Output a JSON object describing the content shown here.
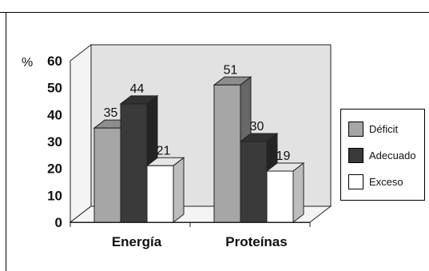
{
  "chart_data": {
    "type": "bar",
    "ylabel": "%",
    "ylim": [
      0,
      60
    ],
    "yticks": [
      0,
      10,
      20,
      30,
      40,
      50,
      60
    ],
    "categories": [
      "Energía",
      "Proteínas"
    ],
    "series": [
      {
        "name": "Déficit",
        "values": [
          35,
          51
        ],
        "color": "#a6a6a6"
      },
      {
        "name": "Adecuado",
        "values": [
          44,
          30
        ],
        "color": "#3a3a3a"
      },
      {
        "name": "Exceso",
        "values": [
          21,
          19
        ],
        "color": "#ffffff"
      }
    ],
    "legend_position": "right",
    "style": "3d-clustered-column"
  }
}
